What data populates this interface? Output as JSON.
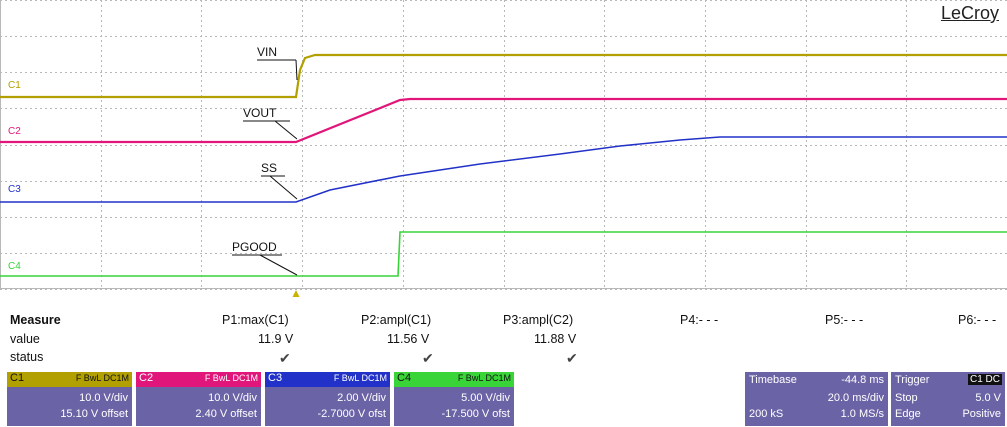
{
  "brand": "LeCroy",
  "channels": [
    {
      "id": "C1",
      "color": "#b1a000",
      "name": "VIN",
      "level_label": "C1"
    },
    {
      "id": "C2",
      "color": "#e0167a",
      "name": "VOUT",
      "level_label": "C2"
    },
    {
      "id": "C3",
      "color": "#2232c8",
      "name": "SS",
      "level_label": "C3"
    },
    {
      "id": "C4",
      "color": "#38d438",
      "name": "PGOOD",
      "level_label": "C4"
    }
  ],
  "measure": {
    "title": "Measure",
    "row_labels": {
      "value": "value",
      "status": "status"
    },
    "params": [
      {
        "label": "P1:max(C1)",
        "value": "11.9 V",
        "check": "✔"
      },
      {
        "label": "P2:ampl(C1)",
        "value": "11.56 V",
        "check": "✔"
      },
      {
        "label": "P3:ampl(C2)",
        "value": "11.88 V",
        "check": "✔"
      },
      {
        "label": "P4:- - -",
        "value": "",
        "check": ""
      },
      {
        "label": "P5:- - -",
        "value": "",
        "check": ""
      },
      {
        "label": "P6:- - -",
        "value": "",
        "check": ""
      }
    ]
  },
  "channel_panels": [
    {
      "id": "C1",
      "tag": "C1",
      "chips": "F BwL DC1M",
      "scale": "10.0 V/div",
      "offset": "15.10 V offset",
      "color": "#b1a000"
    },
    {
      "id": "C2",
      "tag": "C2",
      "chips": "F BwL DC1M",
      "scale": "10.0 V/div",
      "offset": "2.40 V offset",
      "color": "#e0167a"
    },
    {
      "id": "C3",
      "tag": "C3",
      "chips": "F BwL DC1M",
      "scale": "2.00 V/div",
      "offset": "-2.7000 V ofst",
      "color": "#2232c8"
    },
    {
      "id": "C4",
      "tag": "C4",
      "chips": "F BwL DC1M",
      "scale": "5.00 V/div",
      "offset": "-17.500 V ofst",
      "color": "#38d438"
    }
  ],
  "timebase": {
    "label": "Timebase",
    "delay": "-44.8 ms",
    "tdiv": "20.0 ms/div",
    "samples": "200 kS",
    "rate": "1.0 MS/s"
  },
  "trigger": {
    "label": "Trigger",
    "chips": "C1 DC",
    "mode": "Stop",
    "level": "5.0 V",
    "type": "Edge",
    "slope": "Positive"
  }
}
